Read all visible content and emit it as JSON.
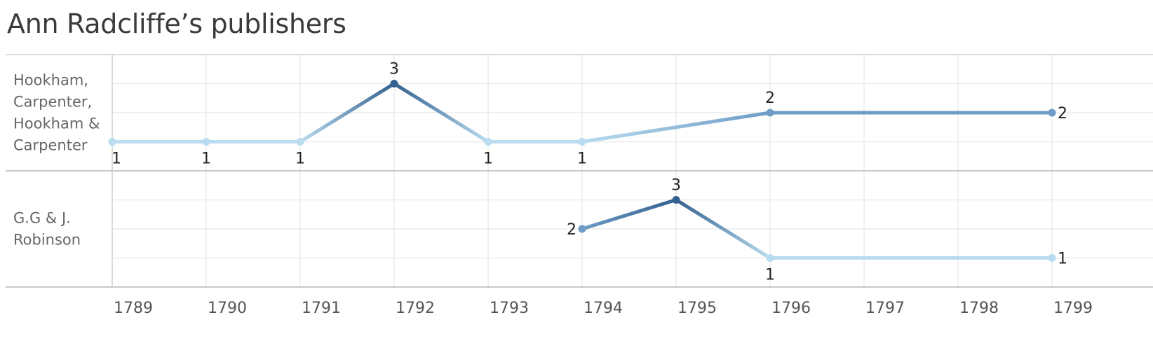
{
  "title": "Ann Radcliffe’s publishers",
  "chart_data": {
    "type": "line",
    "title": "Ann Radcliffe’s publishers",
    "x_ticks": [
      1789,
      1790,
      1791,
      1792,
      1793,
      1794,
      1795,
      1796,
      1797,
      1798,
      1799
    ],
    "xlim": [
      1789,
      1799
    ],
    "ylim": [
      0,
      3
    ],
    "grid": true,
    "color_scale": {
      "1": "#b9dcef",
      "2": "#6e9cc6",
      "3": "#34608f"
    },
    "panels": [
      {
        "name": "Hookham, Carpenter, Hookham & Carpenter",
        "label_lines": [
          "Hookham,",
          "Carpenter,",
          "Hookham &",
          "Carpenter"
        ],
        "points": [
          {
            "x": 1789,
            "y": 1,
            "label": "1"
          },
          {
            "x": 1790,
            "y": 1,
            "label": "1"
          },
          {
            "x": 1791,
            "y": 1,
            "label": "1"
          },
          {
            "x": 1792,
            "y": 3,
            "label": "3"
          },
          {
            "x": 1793,
            "y": 1,
            "label": "1"
          },
          {
            "x": 1794,
            "y": 1,
            "label": "1"
          },
          {
            "x": 1796,
            "y": 2,
            "label": "2"
          },
          {
            "x": 1799,
            "y": 2,
            "label": "2"
          }
        ]
      },
      {
        "name": "G.G & J. Robinson",
        "label_lines": [
          "G.G & J.",
          "Robinson"
        ],
        "points": [
          {
            "x": 1794,
            "y": 2,
            "label": "2"
          },
          {
            "x": 1795,
            "y": 3,
            "label": "3"
          },
          {
            "x": 1796,
            "y": 1,
            "label": "1"
          },
          {
            "x": 1799,
            "y": 1,
            "label": "1"
          }
        ]
      }
    ]
  }
}
